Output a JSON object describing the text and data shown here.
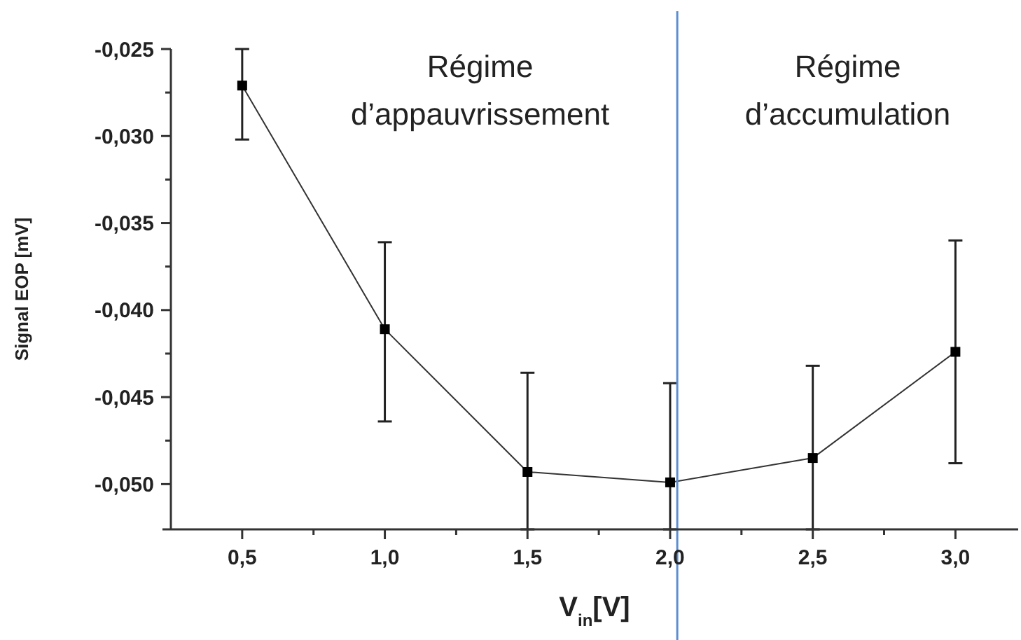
{
  "chart_data": {
    "type": "line",
    "xlabel": "V$_{in}$[V]",
    "ylabel": "Signal EOP [mV]",
    "x": [
      0.5,
      1.0,
      1.5,
      2.0,
      2.5,
      3.0
    ],
    "series": [
      {
        "color": "#000000",
        "values": [
          -0.0271,
          -0.0411,
          -0.0493,
          -0.0499,
          -0.0485,
          -0.0424
        ],
        "errors": [
          [
            -0.0302,
            -0.025
          ],
          [
            -0.0464,
            -0.0361
          ],
          [
            -0.0526,
            -0.0436
          ],
          [
            -0.0526,
            -0.0442
          ],
          [
            -0.0526,
            -0.0432
          ],
          [
            -0.0488,
            -0.036
          ]
        ]
      }
    ],
    "marker": "square",
    "line_style": "solid",
    "grid": false,
    "xlim": [
      0.25,
      3.22
    ],
    "ylim": [
      -0.0526,
      -0.025
    ],
    "xticks": [
      {
        "value": 0.5,
        "label": "0,5"
      },
      {
        "value": 0.75,
        "label": null
      },
      {
        "value": 1.0,
        "label": "1,0"
      },
      {
        "value": 1.25,
        "label": null
      },
      {
        "value": 1.5,
        "label": "1,5"
      },
      {
        "value": 1.75,
        "label": null
      },
      {
        "value": 2.0,
        "label": "2,0"
      },
      {
        "value": 2.25,
        "label": null
      },
      {
        "value": 2.5,
        "label": "2,5"
      },
      {
        "value": 2.75,
        "label": null
      },
      {
        "value": 3.0,
        "label": "3,0"
      }
    ],
    "yticks": [
      {
        "value": -0.05,
        "label": "-0,050"
      },
      {
        "value": -0.0475,
        "label": null
      },
      {
        "value": -0.045,
        "label": "-0,045"
      },
      {
        "value": -0.0425,
        "label": null
      },
      {
        "value": -0.04,
        "label": "-0,040"
      },
      {
        "value": -0.0375,
        "label": null
      },
      {
        "value": -0.035,
        "label": "-0,035"
      },
      {
        "value": -0.0325,
        "label": null
      },
      {
        "value": -0.03,
        "label": "-0,030"
      },
      {
        "value": -0.0275,
        "label": null
      },
      {
        "value": -0.025,
        "label": "-0,025"
      }
    ],
    "ref_lines": [
      {
        "axis": "x",
        "value": 2.025,
        "color": "#5b8fd1"
      }
    ],
    "annotations": [
      "Régime d’appauvrissement",
      "Régime d’accumulation"
    ]
  }
}
